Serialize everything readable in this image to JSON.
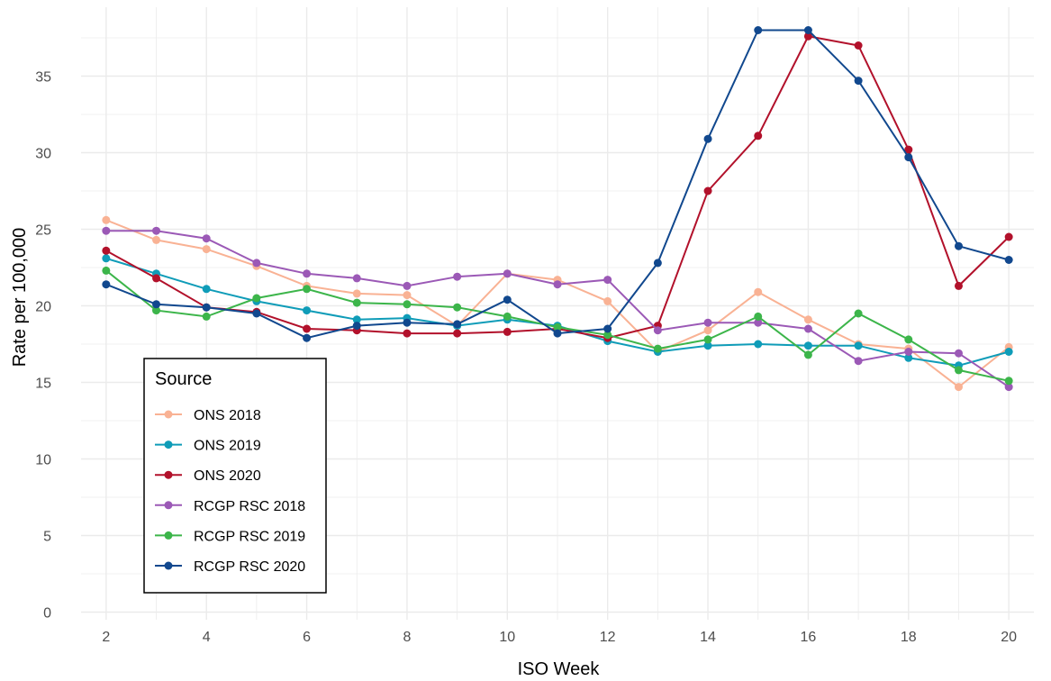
{
  "chart_data": {
    "type": "line",
    "xlabel": "ISO Week",
    "ylabel": "Rate per 100,000",
    "xlim": [
      1.5,
      20.5
    ],
    "ylim": [
      -0.5,
      39.5
    ],
    "x_ticks": [
      2,
      4,
      6,
      8,
      10,
      12,
      14,
      16,
      18,
      20
    ],
    "y_ticks": [
      0,
      5,
      10,
      15,
      20,
      25,
      30,
      35
    ],
    "grid": true,
    "legend": {
      "title": "Source",
      "position": "bottom-left"
    },
    "x": [
      2,
      3,
      4,
      5,
      6,
      7,
      8,
      9,
      10,
      11,
      12,
      13,
      14,
      15,
      16,
      17,
      18,
      19,
      20
    ],
    "series": [
      {
        "name": "ONS 2018",
        "color": "#f9b294",
        "values": [
          25.6,
          24.3,
          23.7,
          22.6,
          21.3,
          20.8,
          20.7,
          18.7,
          22.1,
          21.7,
          20.3,
          17.0,
          18.4,
          20.9,
          19.1,
          17.5,
          17.2,
          14.7,
          17.3
        ]
      },
      {
        "name": "ONS 2019",
        "color": "#0f9cb8",
        "values": [
          23.1,
          22.1,
          21.1,
          20.3,
          19.7,
          19.1,
          19.2,
          18.7,
          19.1,
          18.7,
          17.7,
          17.0,
          17.4,
          17.5,
          17.4,
          17.4,
          16.6,
          16.1,
          17.0
        ]
      },
      {
        "name": "ONS 2020",
        "color": "#b2112b",
        "values": [
          23.6,
          21.8,
          19.9,
          19.6,
          18.5,
          18.4,
          18.2,
          18.2,
          18.3,
          18.5,
          17.9,
          18.7,
          27.5,
          31.1,
          37.6,
          37.0,
          30.2,
          21.3,
          24.5
        ]
      },
      {
        "name": "RCGP RSC 2018",
        "color": "#9b59b6",
        "values": [
          24.9,
          24.9,
          24.4,
          22.8,
          22.1,
          21.8,
          21.3,
          21.9,
          22.1,
          21.4,
          21.7,
          18.4,
          18.9,
          18.9,
          18.5,
          16.4,
          17.0,
          16.9,
          14.7
        ]
      },
      {
        "name": "RCGP RSC 2019",
        "color": "#3cb54a",
        "values": [
          22.3,
          19.7,
          19.3,
          20.5,
          21.1,
          20.2,
          20.1,
          19.9,
          19.3,
          18.6,
          18.1,
          17.2,
          17.8,
          19.3,
          16.8,
          19.5,
          17.8,
          15.8,
          15.1
        ]
      },
      {
        "name": "RCGP RSC 2020",
        "color": "#11488e",
        "values": [
          21.4,
          20.1,
          19.9,
          19.5,
          17.9,
          18.7,
          18.9,
          18.8,
          20.4,
          18.2,
          18.5,
          22.8,
          30.9,
          38.0,
          38.0,
          34.7,
          29.7,
          23.9,
          23.0
        ]
      }
    ]
  }
}
